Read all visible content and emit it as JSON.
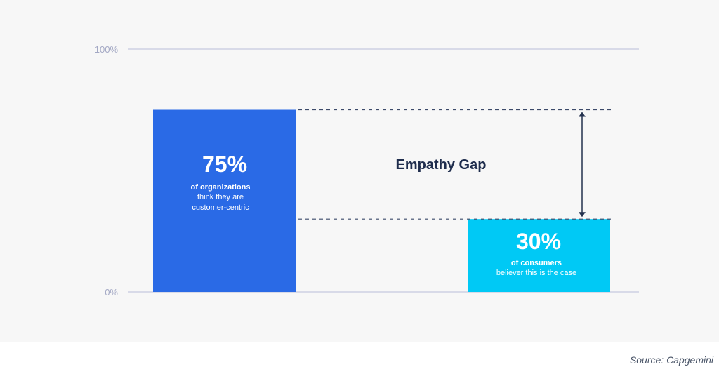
{
  "chart_data": {
    "type": "bar",
    "ylim": [
      0,
      100
    ],
    "y_ticks": [
      "100%",
      "0%"
    ],
    "grid": true,
    "bars": [
      {
        "value": 75,
        "value_label": "75%",
        "line1": "of organizations",
        "line2": "think they are",
        "line3": "customer-centric",
        "color": "#2a6ae6"
      },
      {
        "value": 30,
        "value_label": "30%",
        "line1": "of consumers",
        "line2": "believer this is the case",
        "line3": "",
        "color": "#00c9f5"
      }
    ],
    "annotation": "Empathy Gap"
  },
  "source": "Source: Capgemini",
  "colors": {
    "grid": "#b9bdd8",
    "dash": "#3c4a6a",
    "arrow": "#24324f",
    "panel": "#f7f7f7"
  }
}
